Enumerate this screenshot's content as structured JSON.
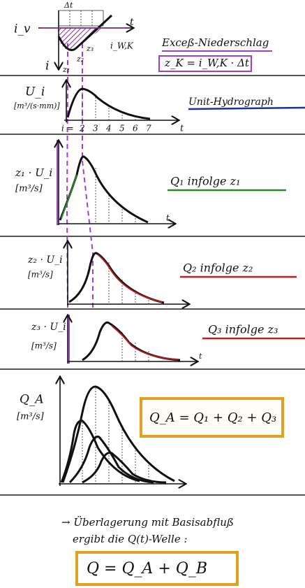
{
  "panel1": {
    "dt": "Δt",
    "iv": "i_v",
    "t": "t",
    "i": "i",
    "z1": "z₁",
    "z2": "z₂",
    "z3": "z₃",
    "iwk": "i_W,K",
    "heading": "Exceß-Niederschlag",
    "formula": "z_K = i_W,K · Δt"
  },
  "panel2": {
    "ylabel": "U_i",
    "unit": "[m³/(s·mm)]",
    "t": "t",
    "i": "i =",
    "ticks": [
      "2",
      "3",
      "4",
      "5",
      "6",
      "7"
    ],
    "heading": "Unit-Hydrograph"
  },
  "panel3": {
    "ylabel": "z₁ · U_i",
    "unit": "[m³/s]",
    "t": "t",
    "heading": "Q₁ infolge z₁"
  },
  "panel4": {
    "ylabel": "z₂ · U_i",
    "unit": "[m³/s]",
    "heading": "Q₂ infolge z₂"
  },
  "panel5": {
    "ylabel": "z₃ · U_i",
    "unit": "[m³/s]",
    "t": "t",
    "heading": "Q₃ infolge z₃"
  },
  "panel6": {
    "ylabel": "Q_A",
    "unit": "[m³/s]",
    "formula": "Q_A = Q₁ + Q₂ + Q₃"
  },
  "conclusion": {
    "line1": "→ Überlagerung mit Basisabfluß",
    "line2": "ergibt die Q(t)-Welle :",
    "formula": "Q = Q_A + Q_B"
  }
}
